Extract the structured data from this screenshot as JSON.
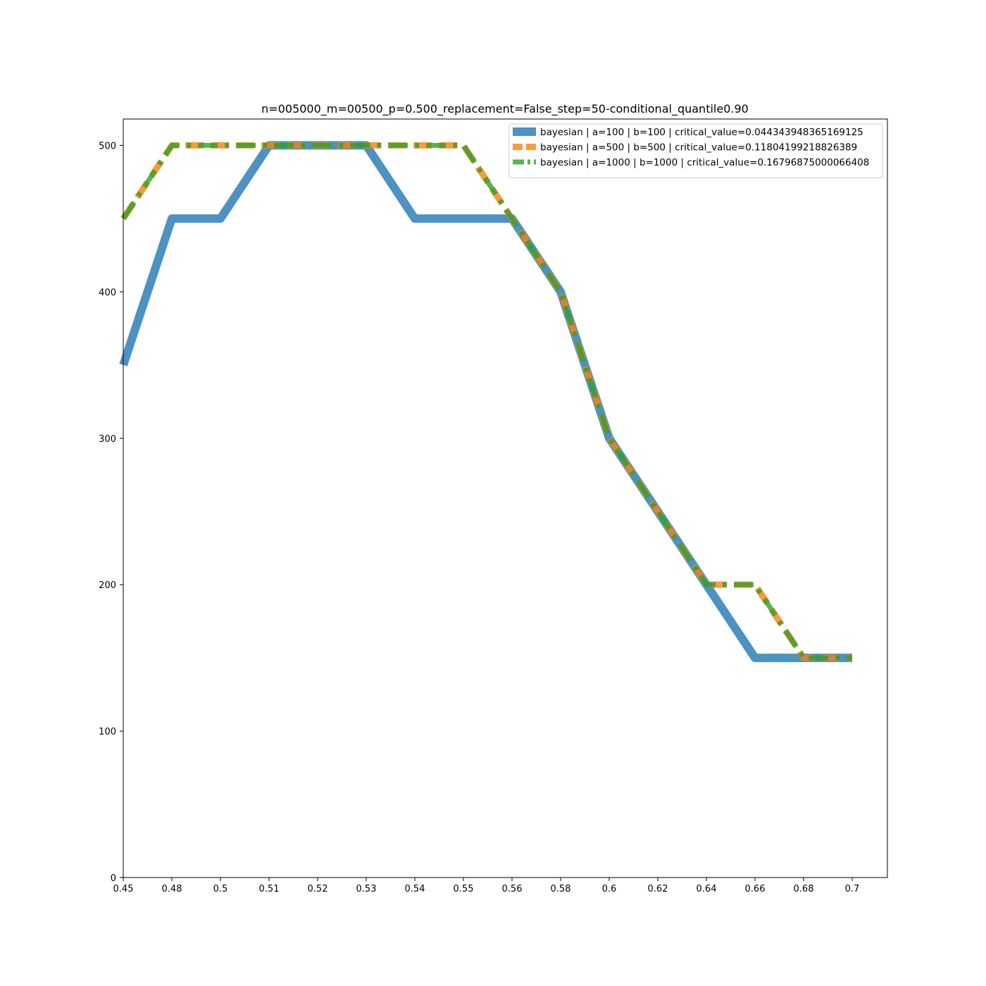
{
  "chart_data": {
    "type": "line",
    "title": "n=005000_m=00500_p=0.500_replacement=False_step=50-conditional_quantile0.90",
    "xlabel": "",
    "ylabel": "",
    "x_tick_labels": [
      "0.45",
      "0.48",
      "0.5",
      "0.51",
      "0.52",
      "0.53",
      "0.54",
      "0.55",
      "0.56",
      "0.58",
      "0.6",
      "0.62",
      "0.64",
      "0.66",
      "0.68",
      "0.7"
    ],
    "y_ticks": [
      0,
      100,
      200,
      300,
      400,
      500
    ],
    "y_tick_labels": [
      "0",
      "100",
      "200",
      "300",
      "400",
      "500"
    ],
    "ylim": [
      0,
      518
    ],
    "grid": false,
    "legend_position": "top-right",
    "series": [
      {
        "name": "bayesian | a=100 | b=100 | critical_value=0.044343948365169125",
        "color": "#1f77b4",
        "style": "solid",
        "values": [
          350,
          450,
          450,
          500,
          500,
          500,
          450,
          450,
          450,
          400,
          300,
          250,
          200,
          150,
          150,
          150
        ]
      },
      {
        "name": "bayesian | a=500 | b=500 | critical_value=0.11804199218826389",
        "color": "#ff7f0e",
        "style": "dashed",
        "values": [
          450,
          500,
          500,
          500,
          500,
          500,
          500,
          500,
          450,
          400,
          300,
          250,
          200,
          200,
          150,
          150
        ]
      },
      {
        "name": "bayesian | a=1000 | b=1000 | critical_value=0.16796875000066408",
        "color": "#2ca02c",
        "style": "dashdot",
        "values": [
          450,
          500,
          500,
          500,
          500,
          500,
          500,
          500,
          450,
          400,
          300,
          250,
          200,
          200,
          150,
          150
        ]
      }
    ]
  }
}
